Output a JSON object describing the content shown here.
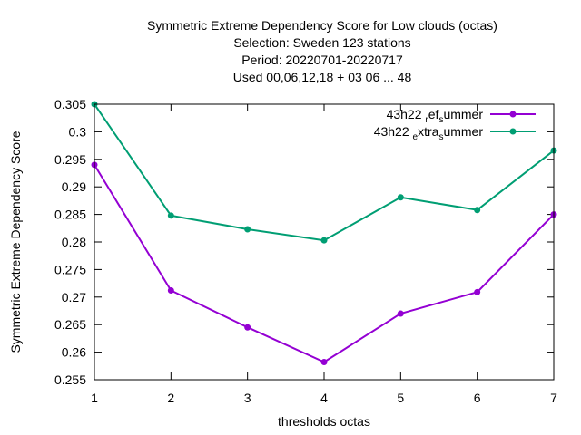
{
  "chart_data": {
    "type": "line",
    "title_lines": [
      "Symmetric Extreme Dependency Score  for Low clouds (octas)",
      "Selection: Sweden    123 stations",
      "Period: 20220701-20220717",
      "Used  00,06,12,18  + 03 06 ... 48"
    ],
    "xlabel": "thresholds octas",
    "ylabel": "Symmetric Extreme Dependency Score",
    "x": [
      1,
      2,
      3,
      4,
      5,
      6,
      7
    ],
    "xlim": [
      1,
      7
    ],
    "ylim": [
      0.255,
      0.305
    ],
    "xticks": [
      "1",
      "2",
      "3",
      "4",
      "5",
      "6",
      "7"
    ],
    "yticks": [
      "0.255",
      "0.26",
      "0.265",
      "0.27",
      "0.275",
      "0.28",
      "0.285",
      "0.29",
      "0.295",
      "0.3",
      "0.305"
    ],
    "grid": false,
    "legend_position": "top-right",
    "series": [
      {
        "name": "43h22_ref_summer",
        "legend_parts": [
          "43h22 ",
          "r",
          "ef",
          "s",
          "ummer"
        ],
        "color": "#9400d3",
        "values": [
          0.294,
          0.2712,
          0.2645,
          0.2582,
          0.267,
          0.2709,
          0.285
        ]
      },
      {
        "name": "43h22_extra_summer",
        "legend_parts": [
          "43h22 ",
          "e",
          "xtra",
          "s",
          "ummer"
        ],
        "color": "#009e73",
        "values": [
          0.305,
          0.2848,
          0.2823,
          0.2803,
          0.2881,
          0.2858,
          0.2966
        ]
      }
    ]
  }
}
